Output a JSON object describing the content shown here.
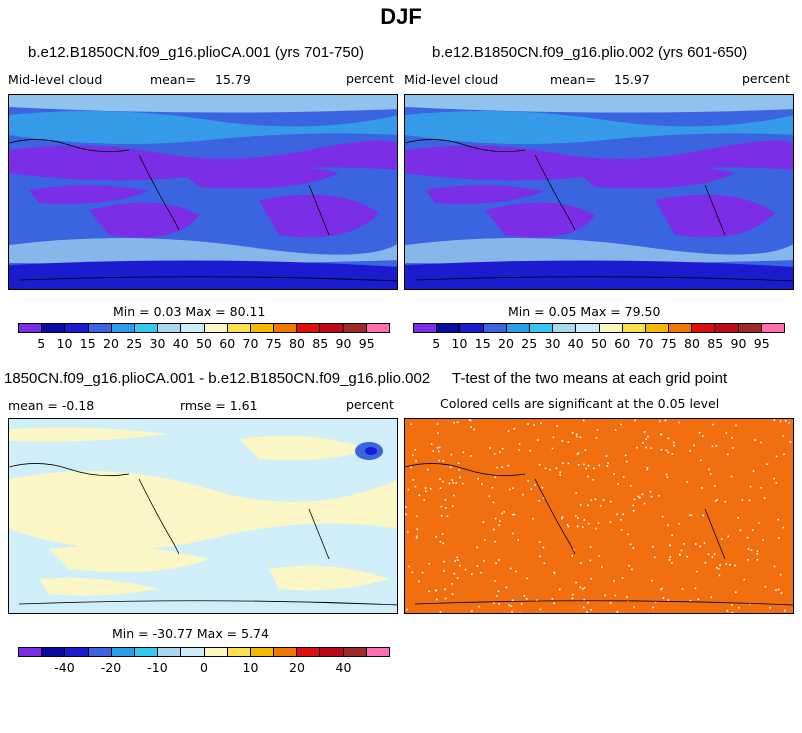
{
  "page_title": "DJF",
  "panels": [
    {
      "title": "b.e12.B1850CN.f09_g16.plioCA.001 (yrs 701-750)",
      "variable": "Mid-level cloud",
      "mean_label": "mean=",
      "mean_value": "15.79",
      "units": "percent",
      "minmax": "Min =    0.03 Max =   80.11"
    },
    {
      "title": "b.e12.B1850CN.f09_g16.plio.002 (yrs 601-650)",
      "variable": "Mid-level cloud",
      "mean_label": "mean=",
      "mean_value": "15.97",
      "units": "percent",
      "minmax": "Min =    0.05 Max =   79.50"
    },
    {
      "title": "1850CN.f09_g16.plioCA.001 - b.e12.B1850CN.f09_g16.plio.002",
      "mean_text": "mean =  -0.18",
      "rmse_text": "rmse =    1.61",
      "units": "percent",
      "minmax": "Min = -30.77 Max =    5.74"
    },
    {
      "title": "T-test of the two means at each grid point",
      "subtitle": "Colored cells are significant at the 0.05 level"
    }
  ],
  "chart_data": [
    {
      "type": "heatmap",
      "title": "b.e12.B1850CN.f09_g16.plioCA.001 (yrs 701-750)",
      "variable": "Mid-level cloud",
      "units": "percent",
      "mean": 15.79,
      "min": 0.03,
      "max": 80.11,
      "colorbar_levels": [
        5,
        10,
        15,
        20,
        25,
        30,
        40,
        50,
        60,
        70,
        75,
        80,
        85,
        90,
        95
      ]
    },
    {
      "type": "heatmap",
      "title": "b.e12.B1850CN.f09_g16.plio.002 (yrs 601-650)",
      "variable": "Mid-level cloud",
      "units": "percent",
      "mean": 15.97,
      "min": 0.05,
      "max": 79.5,
      "colorbar_levels": [
        5,
        10,
        15,
        20,
        25,
        30,
        40,
        50,
        60,
        70,
        75,
        80,
        85,
        90,
        95
      ]
    },
    {
      "type": "heatmap",
      "title": "1850CN.f09_g16.plioCA.001 - b.e12.B1850CN.f09_g16.plio.002",
      "units": "percent",
      "mean": -0.18,
      "rmse": 1.61,
      "min": -30.77,
      "max": 5.74,
      "colorbar_tick_labels": [
        "-40",
        "-20",
        "-10",
        "0",
        "10",
        "20",
        "40"
      ]
    },
    {
      "type": "heatmap",
      "title": "T-test of the two means at each grid point",
      "subtitle": "Colored cells are significant at the 0.05 level",
      "significance_level": 0.05
    }
  ],
  "colorbar_tick_labels_cloud": [
    "5",
    "10",
    "15",
    "20",
    "25",
    "30",
    "40",
    "50",
    "60",
    "70",
    "75",
    "80",
    "85",
    "90",
    "95"
  ],
  "colorbar_tick_labels_diff": [
    "-40",
    "-20",
    "-10",
    "0",
    "10",
    "20",
    "40"
  ],
  "colors": {
    "palette": [
      "#7b2ee6",
      "#0a0aa0",
      "#1b1bd0",
      "#3a64e0",
      "#2a9ee8",
      "#32c8f0",
      "#a8d8f0",
      "#ccecf7",
      "#fbf6c0",
      "#f8e14a",
      "#f5b800",
      "#f07800",
      "#e01010",
      "#c00818",
      "#a02a2a",
      "#ff6eb0"
    ],
    "ttest_fill": "#f26f10",
    "diff_background": "#cfeef8",
    "diff_positive": "#fbf6c5"
  }
}
